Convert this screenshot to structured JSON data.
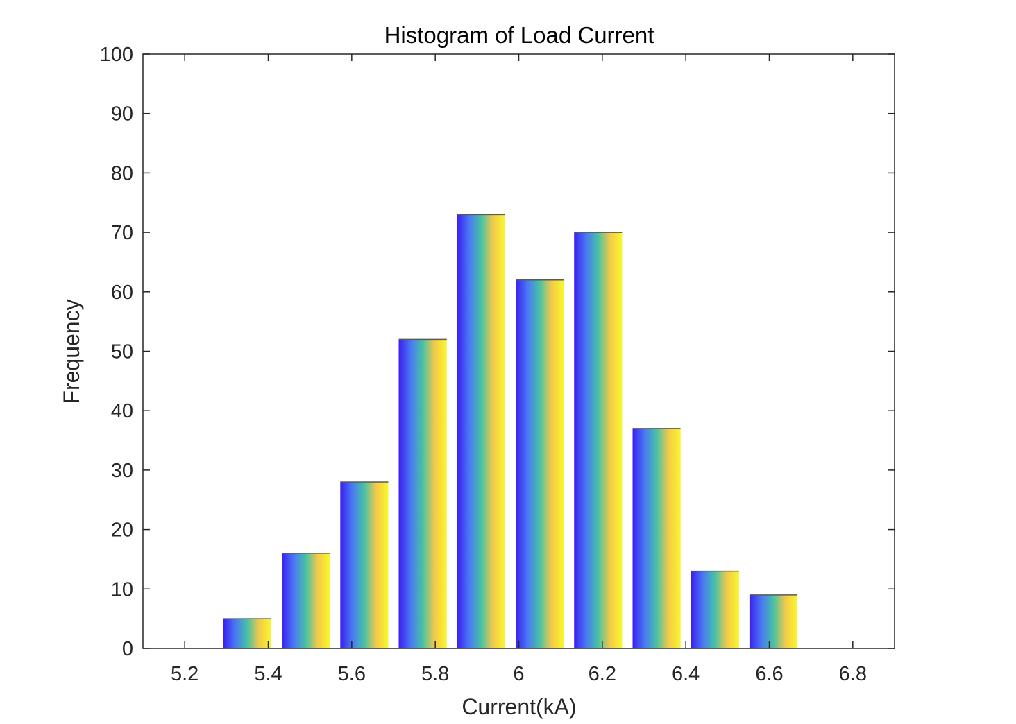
{
  "chart_data": {
    "type": "bar",
    "title": "Histogram of Load Current",
    "xlabel": "Current(kA)",
    "ylabel": "Frequency",
    "x": [
      5.35,
      5.49,
      5.63,
      5.77,
      5.91,
      6.05,
      6.19,
      6.33,
      6.47,
      6.61
    ],
    "values": [
      5,
      16,
      28,
      52,
      73,
      62,
      70,
      37,
      13,
      9
    ],
    "xlim": [
      5.1,
      6.9
    ],
    "ylim": [
      0,
      100
    ],
    "xticks": [
      5.2,
      5.4,
      5.6,
      5.8,
      6,
      6.2,
      6.4,
      6.6,
      6.8
    ],
    "xtick_labels": [
      "5.2",
      "5.4",
      "5.6",
      "5.8",
      "6",
      "6.2",
      "6.4",
      "6.6",
      "6.8"
    ],
    "yticks": [
      0,
      10,
      20,
      30,
      40,
      50,
      60,
      70,
      80,
      90,
      100
    ],
    "ytick_labels": [
      "0",
      "10",
      "20",
      "30",
      "40",
      "50",
      "60",
      "70",
      "80",
      "90",
      "100"
    ],
    "bar_width": 0.115,
    "grid": false,
    "bar_gradient": [
      "#3b1ff0",
      "#4a78f5",
      "#46c2a6",
      "#f4c94a",
      "#f8f82a"
    ]
  }
}
